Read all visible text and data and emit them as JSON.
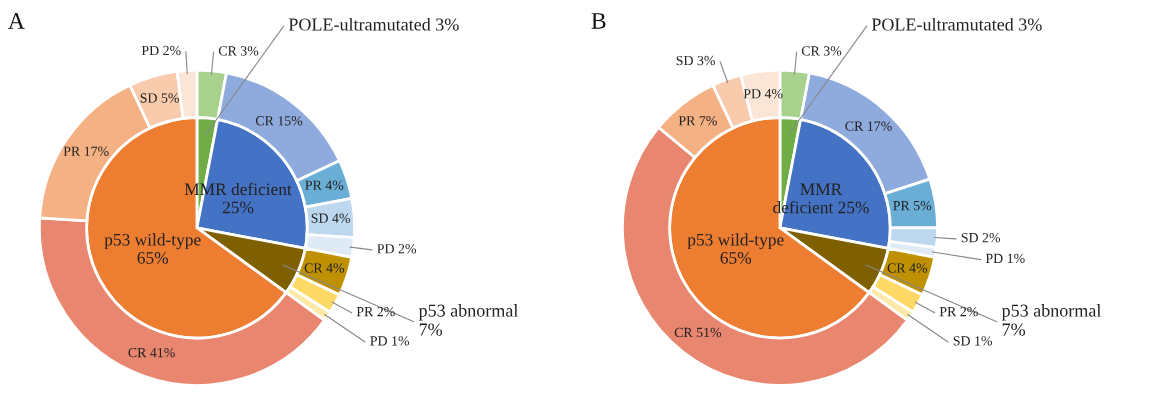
{
  "chart_data": [
    {
      "type": "pie",
      "title": "A",
      "series": [
        {
          "type": "pie",
          "value_labels": [
            "POLE-ultramutated 3%",
            "MMR deficient\n25%",
            "p53 abnormal\n7%",
            "p53 wild-type\n65%"
          ],
          "values": [
            3,
            25,
            7,
            65
          ],
          "colors": [
            "#70ad47",
            "#4472c4",
            "#7f6000",
            "#ed7d31"
          ]
        },
        {
          "type": "donut",
          "value_labels": [
            "CR 3%",
            "CR 15%",
            "PR 4%",
            "SD 4%",
            "PD 2%",
            "CR 4%",
            "PR 2%",
            "PD 1%",
            "CR 41%",
            "PR 17%",
            "SD 5%",
            "PD 2%"
          ],
          "values": [
            3,
            15,
            4,
            4,
            2,
            4,
            2,
            1,
            41,
            17,
            5,
            2
          ],
          "colors": [
            "#a9d18e",
            "#8faadc",
            "#6aaed6",
            "#bdd7ee",
            "#deebf7",
            "#bf9000",
            "#ffd966",
            "#ffe9a8",
            "#e9866f",
            "#f4b183",
            "#f8cbad",
            "#fbe5d6"
          ]
        }
      ]
    },
    {
      "type": "pie",
      "title": "B",
      "series": [
        {
          "type": "pie",
          "value_labels": [
            "POLE-ultramutated 3%",
            "MMR\ndeficient 25%",
            "p53 abnormal\n7%",
            "p53 wild-type\n65%"
          ],
          "values": [
            3,
            25,
            7,
            65
          ],
          "colors": [
            "#70ad47",
            "#4472c4",
            "#7f6000",
            "#ed7d31"
          ]
        },
        {
          "type": "donut",
          "value_labels": [
            "CR 3%",
            "CR 17%",
            "PR 5%",
            "SD 2%",
            "PD 1%",
            "CR 4%",
            "PR 2%",
            "SD 1%",
            "CR 51%",
            "PR 7%",
            "SD 3%",
            "PD 4%"
          ],
          "values": [
            3,
            17,
            5,
            2,
            1,
            4,
            2,
            1,
            51,
            7,
            3,
            4
          ],
          "colors": [
            "#a9d18e",
            "#8faadc",
            "#6aaed6",
            "#bdd7ee",
            "#deebf7",
            "#bf9000",
            "#ffd966",
            "#ffe9a8",
            "#e9866f",
            "#f4b183",
            "#f8cbad",
            "#fbe5d6"
          ]
        }
      ]
    }
  ]
}
